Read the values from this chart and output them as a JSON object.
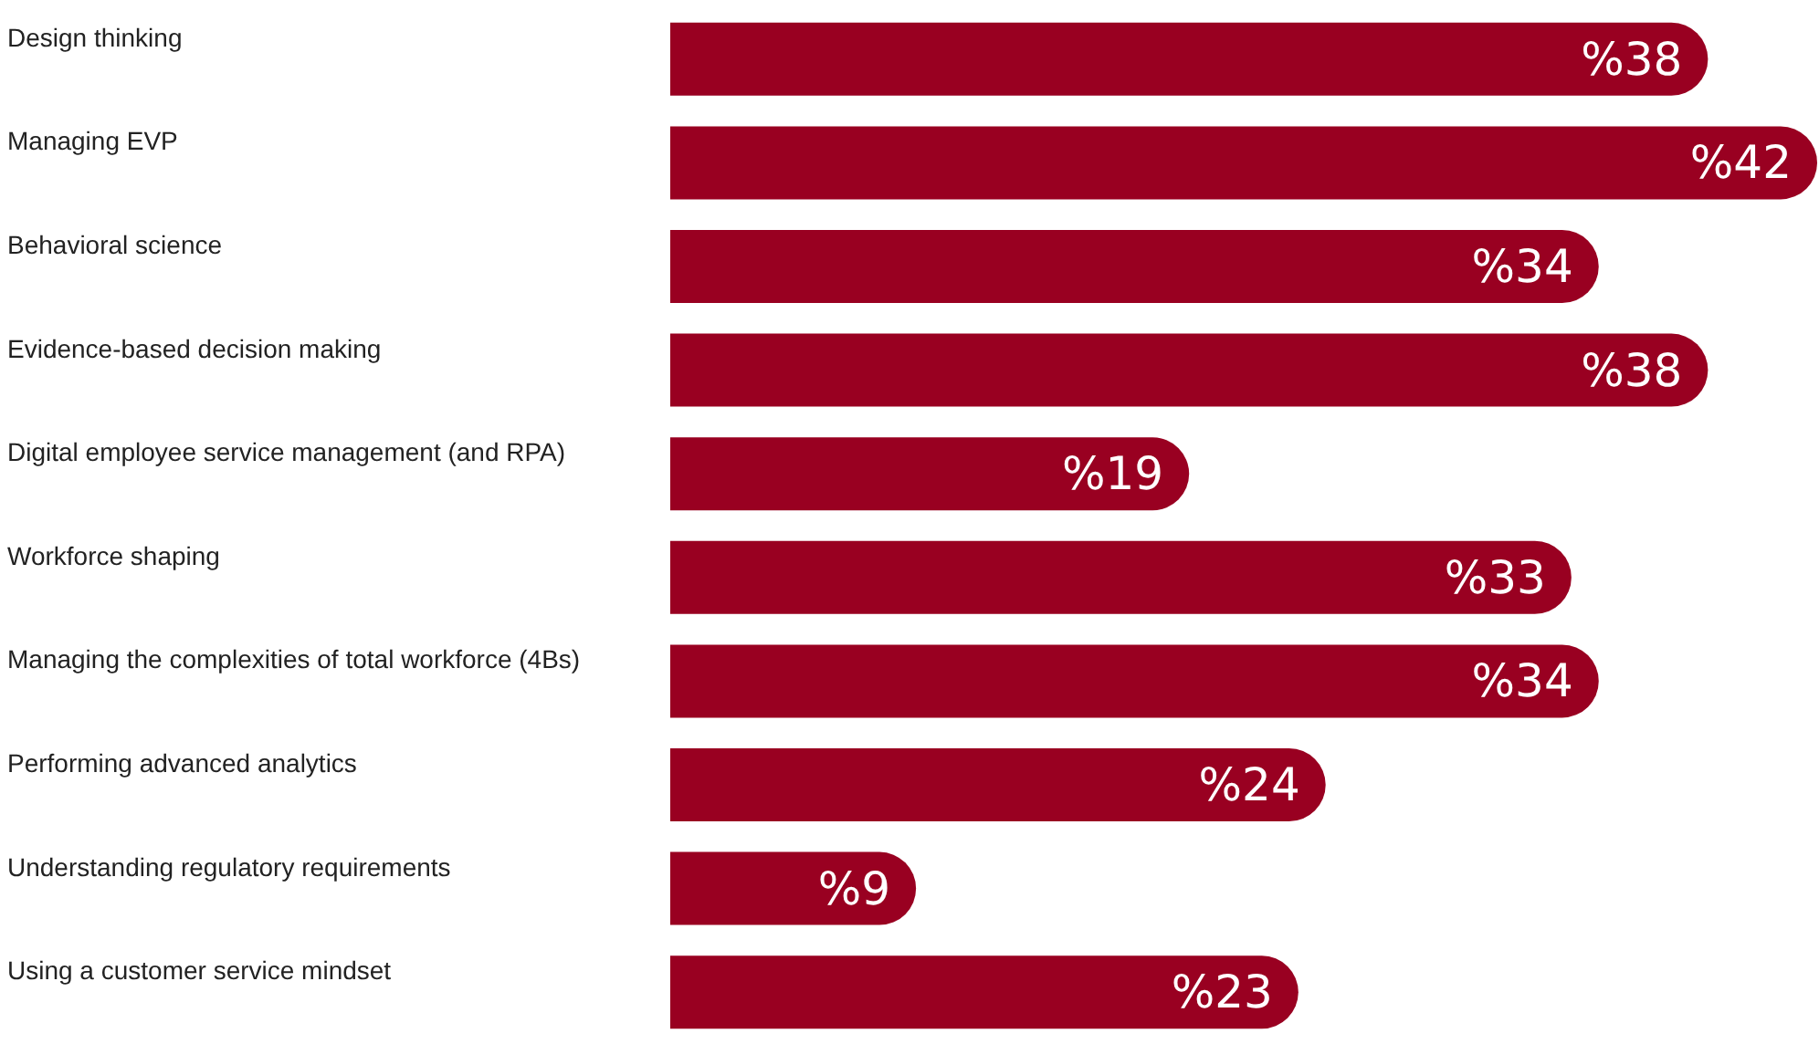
{
  "chart_data": {
    "type": "bar",
    "orientation": "horizontal",
    "categories": [
      "Design thinking",
      "Managing EVP",
      "Behavioral science",
      "Evidence-based decision making",
      "Digital employee service management (and RPA)",
      "Workforce shaping",
      "Managing the complexities of total workforce (4Bs)",
      "Performing advanced analytics",
      "Understanding regulatory requirements",
      "Using a customer service mindset"
    ],
    "values": [
      38,
      42,
      34,
      38,
      19,
      33,
      34,
      24,
      9,
      23
    ],
    "value_labels": [
      "%38",
      "%42",
      "%34",
      "%38",
      "%19",
      "%33",
      "%34",
      "%24",
      "%9",
      "%23"
    ],
    "color": "#990021"
  }
}
